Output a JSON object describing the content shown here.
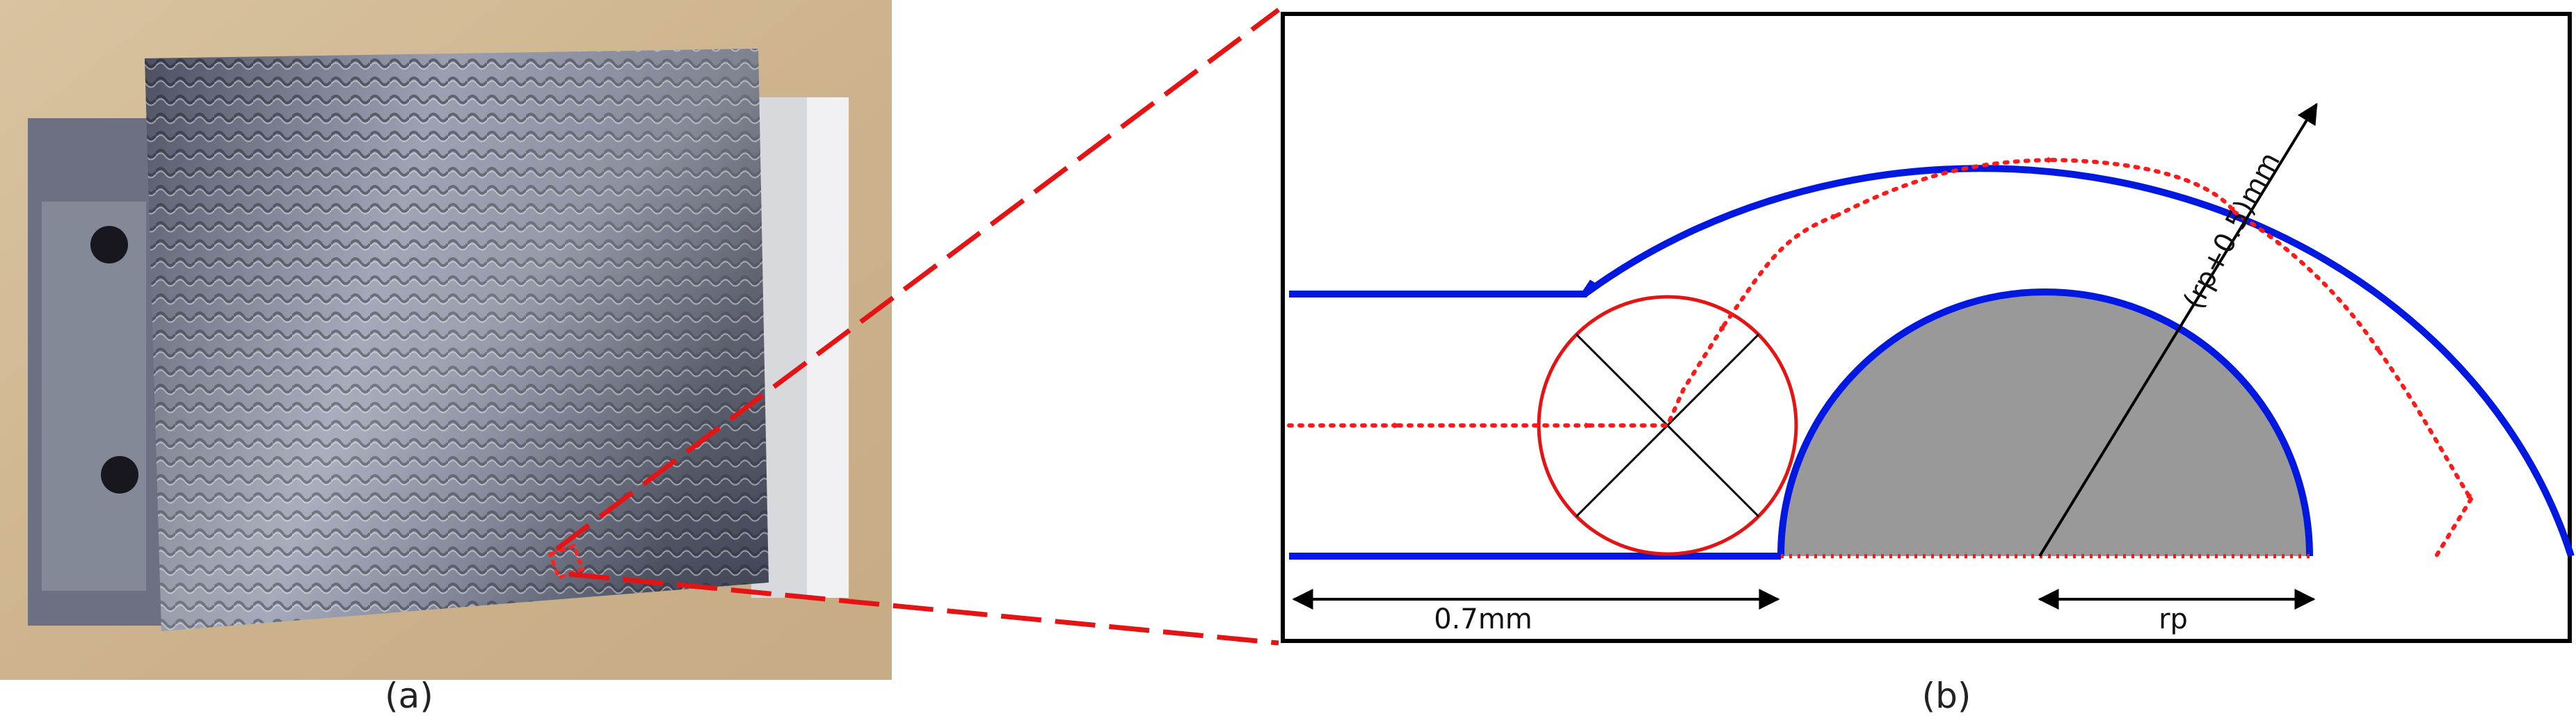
{
  "captions": {
    "a": "(a)",
    "b": "(b)"
  },
  "labels": {
    "channel_length": "0.7mm",
    "pin_radius": "rp",
    "outer_radius": "(rp+0.5)mm"
  },
  "photo": {
    "description_icon": "machined-plate-photo"
  },
  "colors": {
    "wall": "#0018e0",
    "flow": "#ff1a1a",
    "pin_fill": "#999999",
    "frame": "#000000",
    "zoom_line": "#e41414"
  }
}
